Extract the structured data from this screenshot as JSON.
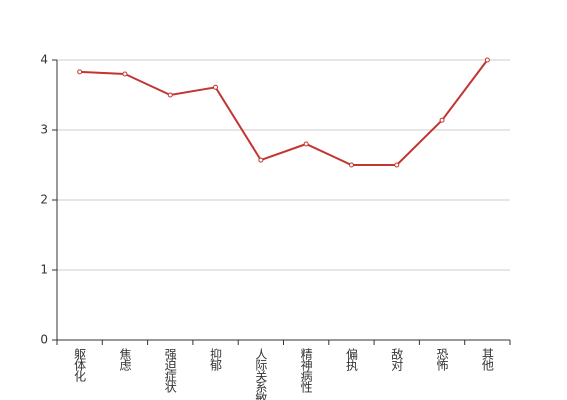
{
  "chart_data": {
    "type": "line",
    "categories": [
      "躯体化",
      "焦虑",
      "强迫症状",
      "抑郁",
      "人际关系敏感",
      "精神病性",
      "偏执",
      "敌对",
      "恐怖",
      "其他"
    ],
    "series": [
      {
        "color": "#c23531",
        "values": [
          3.83,
          3.8,
          3.5,
          3.61,
          2.57,
          2.8,
          2.5,
          2.5,
          3.14,
          4.0
        ]
      }
    ],
    "ylim": [
      0,
      4
    ],
    "yticks": [
      0,
      1,
      2,
      3,
      4
    ],
    "grid": true
  }
}
